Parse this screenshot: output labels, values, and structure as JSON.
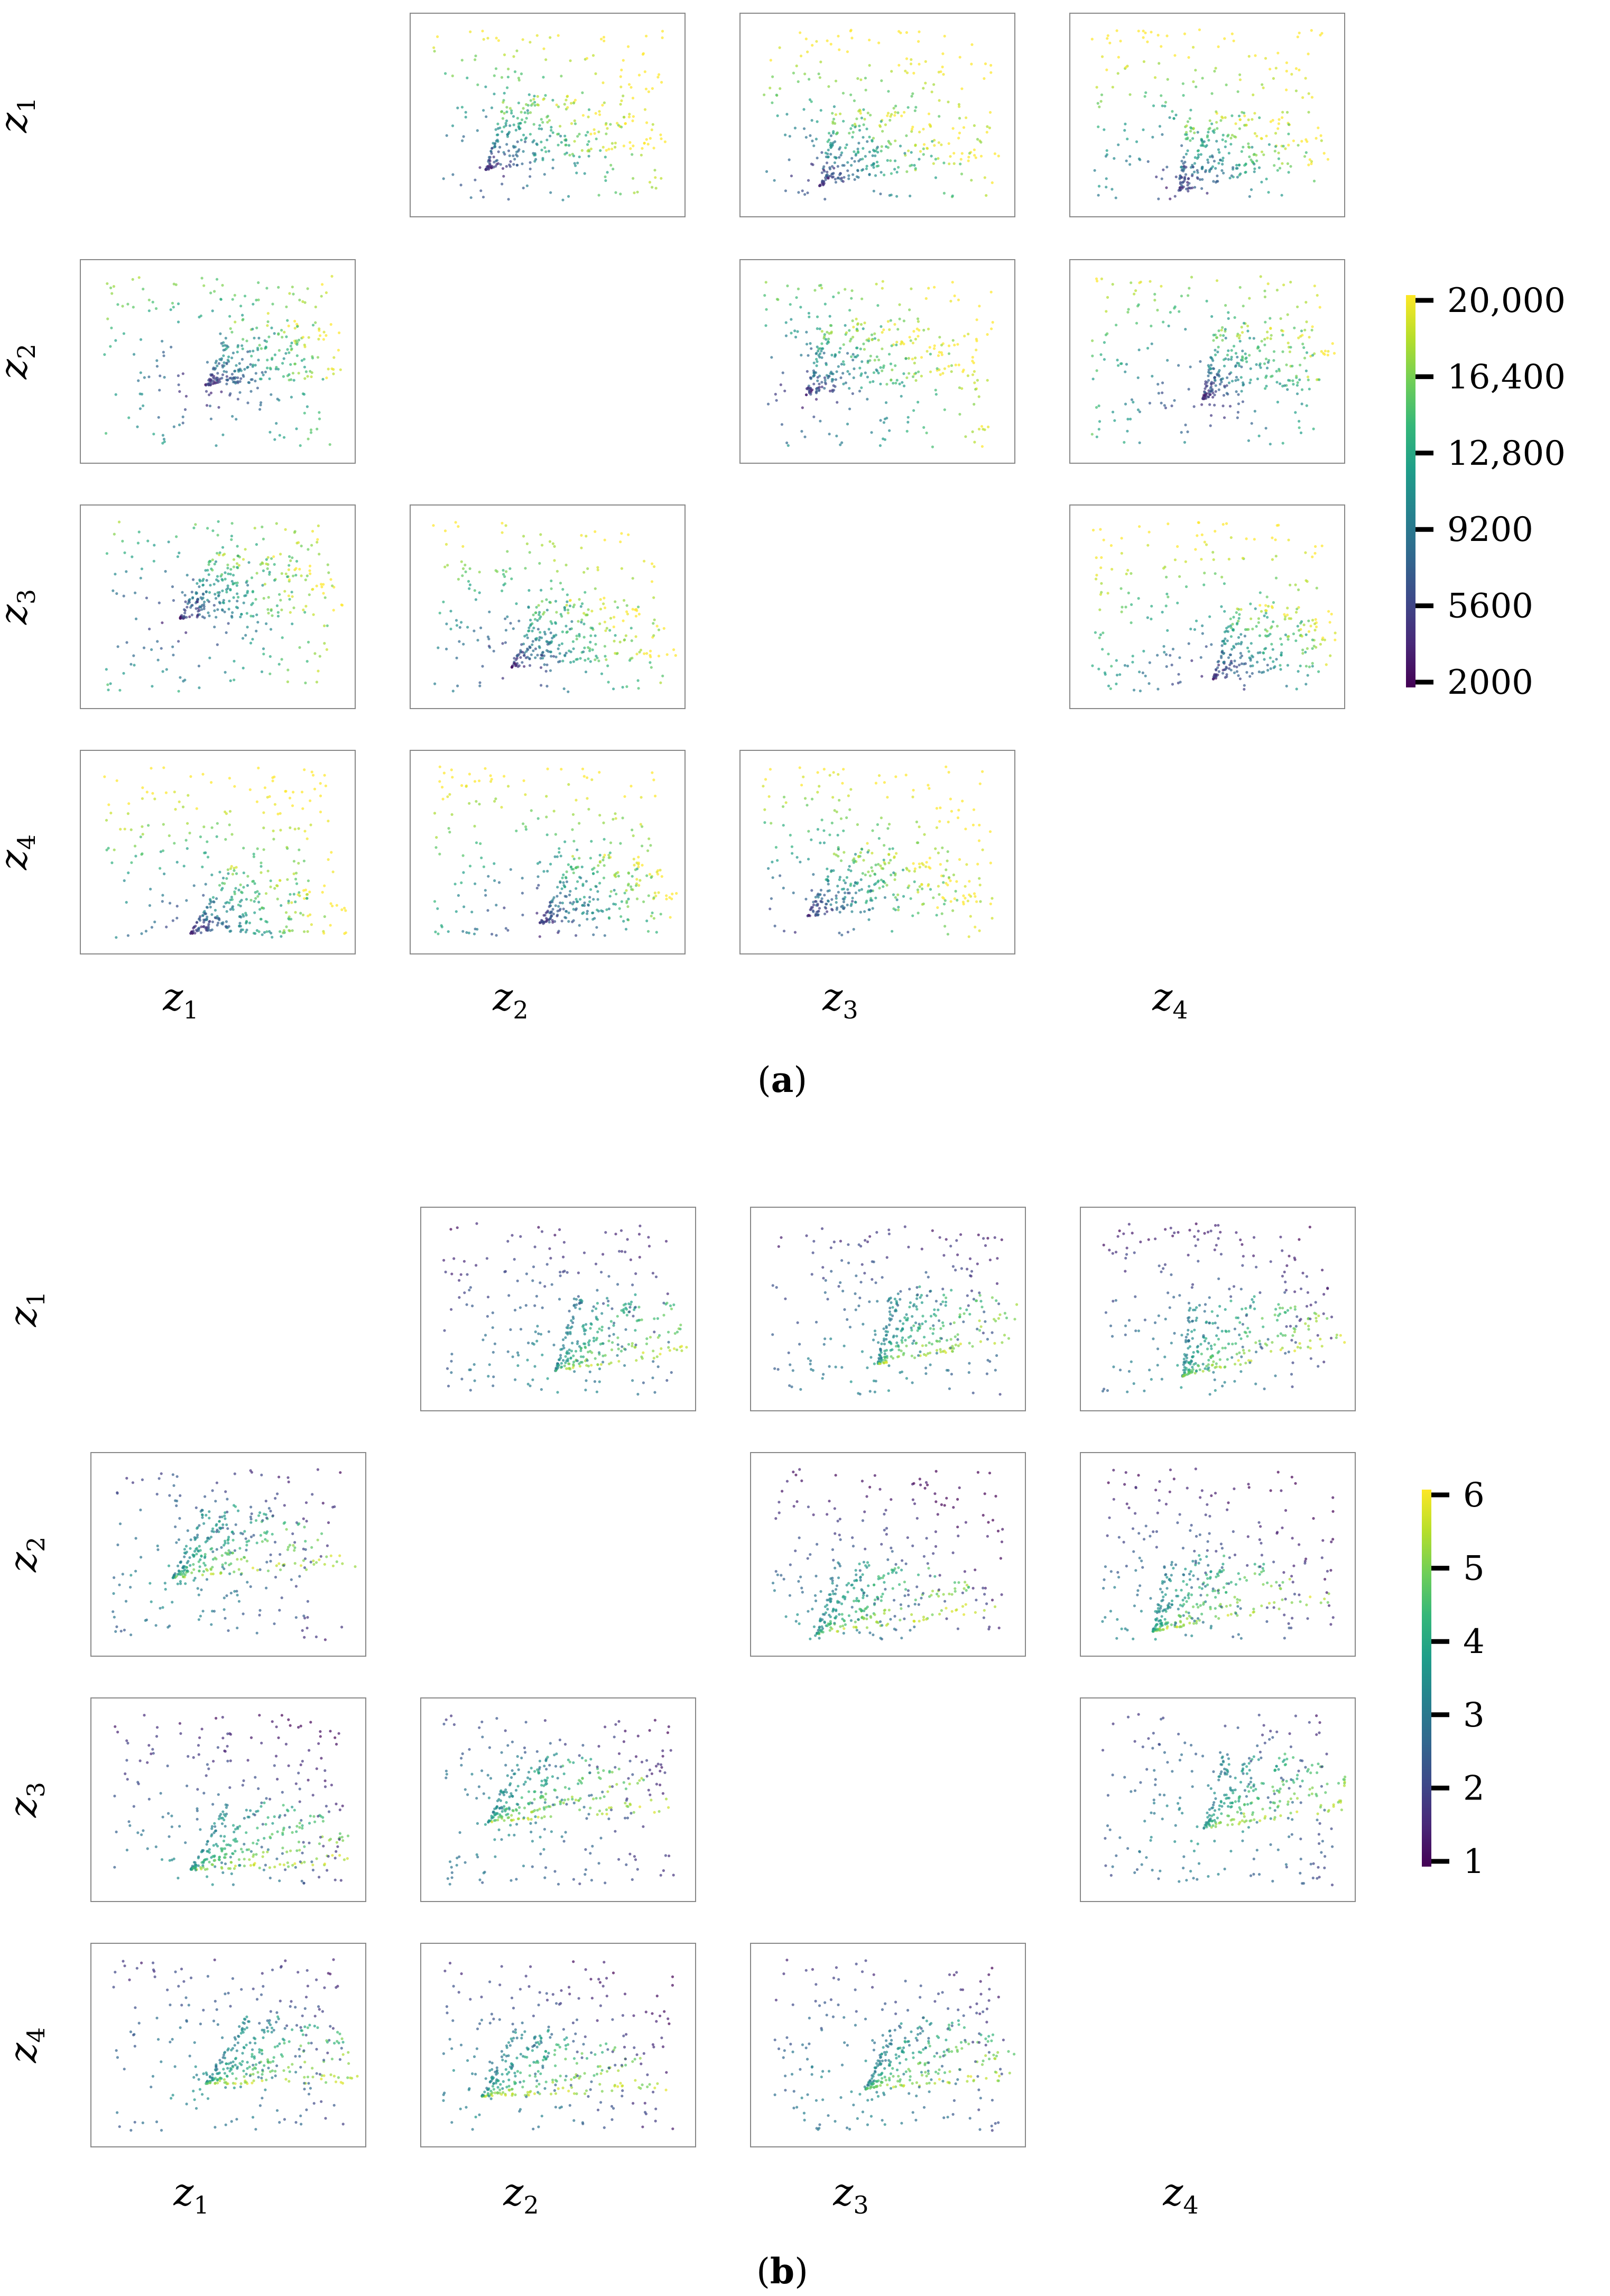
{
  "chart_data": [
    {
      "type": "scatter",
      "panel_caption": "a",
      "layout": "pair-grid 4x4, diagonal empty",
      "variables": [
        "z1",
        "z2",
        "z3",
        "z4"
      ],
      "row_labels": [
        {
          "main": "z",
          "sub": "1"
        },
        {
          "main": "z",
          "sub": "2"
        },
        {
          "main": "z",
          "sub": "3"
        },
        {
          "main": "z",
          "sub": "4"
        }
      ],
      "col_labels": [
        {
          "main": "z",
          "sub": "1"
        },
        {
          "main": "z",
          "sub": "2"
        },
        {
          "main": "z",
          "sub": "3"
        },
        {
          "main": "z",
          "sub": "4"
        }
      ],
      "axis_ticks": "none",
      "frame": "box",
      "colormap": "viridis",
      "colorbar": {
        "ticks": [
          "2000",
          "5600",
          "9200",
          "12,800",
          "16,400",
          "20,000"
        ],
        "range": [
          2000,
          20000
        ]
      }
    },
    {
      "type": "scatter",
      "panel_caption": "b",
      "layout": "pair-grid 4x4, diagonal empty",
      "variables": [
        "z1",
        "z2",
        "z3",
        "z4"
      ],
      "row_labels": [
        {
          "main": "z",
          "sub": "1"
        },
        {
          "main": "z",
          "sub": "2"
        },
        {
          "main": "z",
          "sub": "3"
        },
        {
          "main": "z",
          "sub": "4"
        }
      ],
      "col_labels": [
        {
          "main": "z",
          "sub": "1"
        },
        {
          "main": "z",
          "sub": "2"
        },
        {
          "main": "z",
          "sub": "3"
        },
        {
          "main": "z",
          "sub": "4"
        }
      ],
      "axis_ticks": "none",
      "frame": "box",
      "colormap": "viridis",
      "colorbar": {
        "ticks": [
          "1",
          "2",
          "3",
          "4",
          "5",
          "6"
        ],
        "range": [
          1,
          6
        ]
      }
    }
  ],
  "colors": {
    "viridis_stops": [
      "#440154",
      "#482878",
      "#3e4989",
      "#31688e",
      "#26828e",
      "#1f9e89",
      "#35b779",
      "#6ece58",
      "#b5de2b",
      "#fde725"
    ],
    "frame": "#888888"
  }
}
